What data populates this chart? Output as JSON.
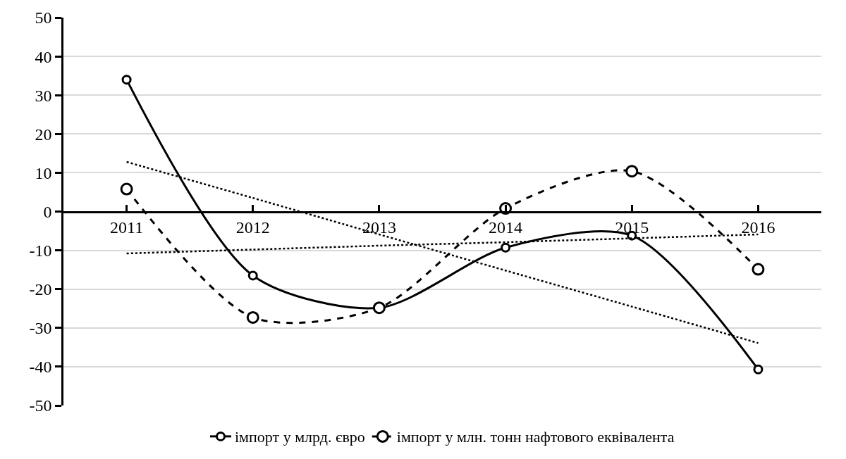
{
  "chart_data": {
    "type": "line",
    "categories": [
      "2011",
      "2012",
      "2013",
      "2014",
      "2015",
      "2016"
    ],
    "series": [
      {
        "name": "імпорт у млрд. євро",
        "color": "#000000",
        "values": [
          34,
          -16.5,
          -24.8,
          -9.3,
          -6.2,
          -40.7
        ],
        "line_style": "solid",
        "marker": "circle"
      },
      {
        "name": "імпорт у млн. тонн нафтового еквівалента",
        "color": "#000000",
        "values": [
          5.8,
          -27.3,
          -24.8,
          0.8,
          10.4,
          -14.9
        ],
        "line_style": "dashed",
        "marker": "circle"
      },
      {
        "color": "#000000",
        "values": [
          12.8,
          3.5,
          -5.9,
          -15.2,
          -24.5,
          -33.9
        ],
        "line_style": "dotted",
        "marker": "none"
      },
      {
        "color": "#000000",
        "values": [
          -10.8,
          -9.8,
          -8.8,
          -7.9,
          -6.9,
          -5.9
        ],
        "line_style": "dotted",
        "marker": "none"
      }
    ],
    "ylim": [
      -50,
      50
    ],
    "yticks": [
      -50,
      -40,
      -30,
      -20,
      -10,
      0,
      10,
      20,
      30,
      40,
      50
    ],
    "grid": "y",
    "legend": "bottom"
  }
}
